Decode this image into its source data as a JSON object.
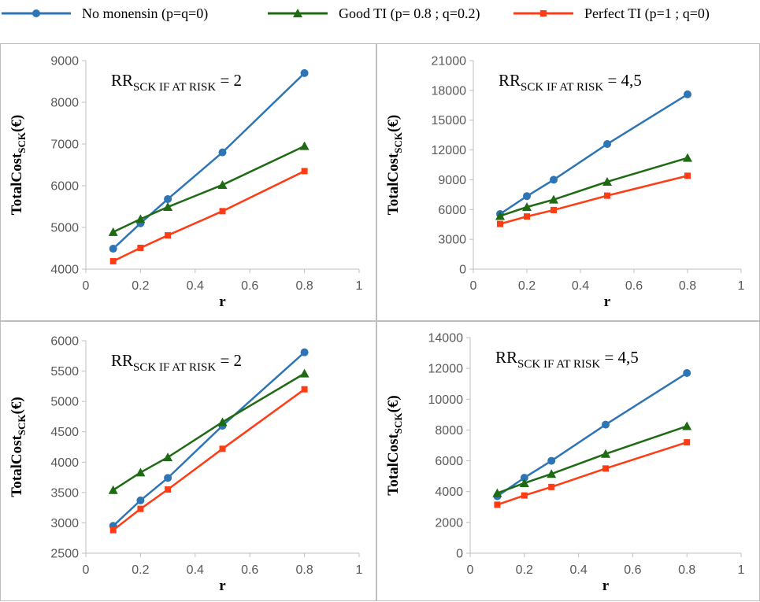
{
  "legend": [
    {
      "name": "No monensin",
      "text": "No monensin  (p=q=0)",
      "color": "#2E75B6",
      "marker": "circle"
    },
    {
      "name": "Good TI",
      "text": "Good TI (p= 0.8 ; q=0.2)",
      "color": "#1E6B13",
      "marker": "triangle"
    },
    {
      "name": "Perfect TI",
      "text": "Perfect TI (p=1 ; q=0)",
      "color": "#FF3C14",
      "marker": "square"
    }
  ],
  "chart_data": [
    {
      "type": "line",
      "title": "",
      "annotation": {
        "main": "RR",
        "sub": "SCK IF AT RISK",
        "suffix": " = 2"
      },
      "ylabel": {
        "main": "TotalCost",
        "sub": "SCK",
        "suffix": "(€)"
      },
      "xlabel": "r",
      "xlim": [
        0,
        1
      ],
      "ylim": [
        4000,
        9000
      ],
      "xticks": [
        0,
        0.2,
        0.4,
        0.6,
        0.8,
        1
      ],
      "xtick_labels": [
        "0",
        "0.2",
        "0.4",
        "0.6",
        "0.8",
        "1"
      ],
      "yticks": [
        4000,
        5000,
        6000,
        7000,
        8000,
        9000
      ],
      "ytick_labels": [
        "4000",
        "5000",
        "6000",
        "7000",
        "8000",
        "9000"
      ],
      "x": [
        0.1,
        0.2,
        0.3,
        0.5,
        0.8
      ],
      "series": [
        {
          "name": "No monensin",
          "values": [
            4490,
            5100,
            5680,
            6800,
            8700
          ]
        },
        {
          "name": "Good TI",
          "values": [
            4890,
            5200,
            5490,
            6020,
            6950
          ]
        },
        {
          "name": "Perfect TI",
          "values": [
            4190,
            4510,
            4810,
            5390,
            6350
          ]
        }
      ]
    },
    {
      "type": "line",
      "title": "",
      "annotation": {
        "main": "RR",
        "sub": "SCK IF AT RISK",
        "suffix": " = 4,5"
      },
      "ylabel": {
        "main": "TotalCost",
        "sub": "SCK",
        "suffix": "(€)"
      },
      "xlabel": "r",
      "xlim": [
        0,
        1
      ],
      "ylim": [
        0,
        21000
      ],
      "xticks": [
        0,
        0.2,
        0.4,
        0.6,
        0.8,
        1
      ],
      "xtick_labels": [
        "0",
        "0.2",
        "0.4",
        "0.6",
        "0.8",
        "1"
      ],
      "yticks": [
        0,
        3000,
        6000,
        9000,
        12000,
        15000,
        18000,
        21000
      ],
      "ytick_labels": [
        "0",
        "3000",
        "6000",
        "9000",
        "12000",
        "15000",
        "18000",
        "21000"
      ],
      "x": [
        0.1,
        0.2,
        0.3,
        0.5,
        0.8
      ],
      "series": [
        {
          "name": "No monensin",
          "values": [
            5550,
            7350,
            9000,
            12600,
            17600
          ]
        },
        {
          "name": "Good TI",
          "values": [
            5350,
            6250,
            7000,
            8800,
            11200
          ]
        },
        {
          "name": "Perfect TI",
          "values": [
            4550,
            5300,
            5950,
            7400,
            9400
          ]
        }
      ]
    },
    {
      "type": "line",
      "title": "",
      "annotation": {
        "main": "RR",
        "sub": "SCK IF AT RISK",
        "suffix": " = 2"
      },
      "ylabel": {
        "main": "TotalCost",
        "sub": "SCK",
        "suffix": "(€)"
      },
      "xlabel": "r",
      "xlim": [
        0,
        1
      ],
      "ylim": [
        2500,
        6000
      ],
      "xticks": [
        0,
        0.2,
        0.4,
        0.6,
        0.8,
        1
      ],
      "xtick_labels": [
        "0",
        "0.2",
        "0.4",
        "0.6",
        "0.8",
        "1"
      ],
      "yticks": [
        2500,
        3000,
        3500,
        4000,
        4500,
        5000,
        5500,
        6000
      ],
      "ytick_labels": [
        "2500",
        "3000",
        "3500",
        "4000",
        "4500",
        "5000",
        "5500",
        "6000"
      ],
      "x": [
        0.1,
        0.2,
        0.3,
        0.5,
        0.8
      ],
      "series": [
        {
          "name": "No monensin",
          "values": [
            2950,
            3370,
            3740,
            4600,
            5810
          ]
        },
        {
          "name": "Good TI",
          "values": [
            3540,
            3830,
            4080,
            4660,
            5460
          ]
        },
        {
          "name": "Perfect TI",
          "values": [
            2880,
            3230,
            3550,
            4220,
            5200
          ]
        }
      ]
    },
    {
      "type": "line",
      "title": "",
      "annotation": {
        "main": "RR",
        "sub": "SCK IF AT RISK",
        "suffix": " = 4,5"
      },
      "ylabel": {
        "main": "TotalCost",
        "sub": "SCK",
        "suffix": "(€)"
      },
      "xlabel": "r",
      "xlim": [
        0,
        1
      ],
      "ylim": [
        0,
        14000
      ],
      "xticks": [
        0,
        0.2,
        0.4,
        0.6,
        0.8,
        1
      ],
      "xtick_labels": [
        "0",
        "0.2",
        "0.4",
        "0.6",
        "0.8",
        "1"
      ],
      "yticks": [
        0,
        2000,
        4000,
        6000,
        8000,
        10000,
        12000,
        14000
      ],
      "ytick_labels": [
        "0",
        "2000",
        "4000",
        "6000",
        "8000",
        "10000",
        "12000",
        "14000"
      ],
      "x": [
        0.1,
        0.2,
        0.3,
        0.5,
        0.8
      ],
      "series": [
        {
          "name": "No monensin",
          "values": [
            3700,
            4900,
            6000,
            8350,
            11700
          ]
        },
        {
          "name": "Good TI",
          "values": [
            3900,
            4550,
            5150,
            6450,
            8250
          ]
        },
        {
          "name": "Perfect TI",
          "values": [
            3150,
            3750,
            4300,
            5500,
            7200
          ]
        }
      ]
    }
  ]
}
